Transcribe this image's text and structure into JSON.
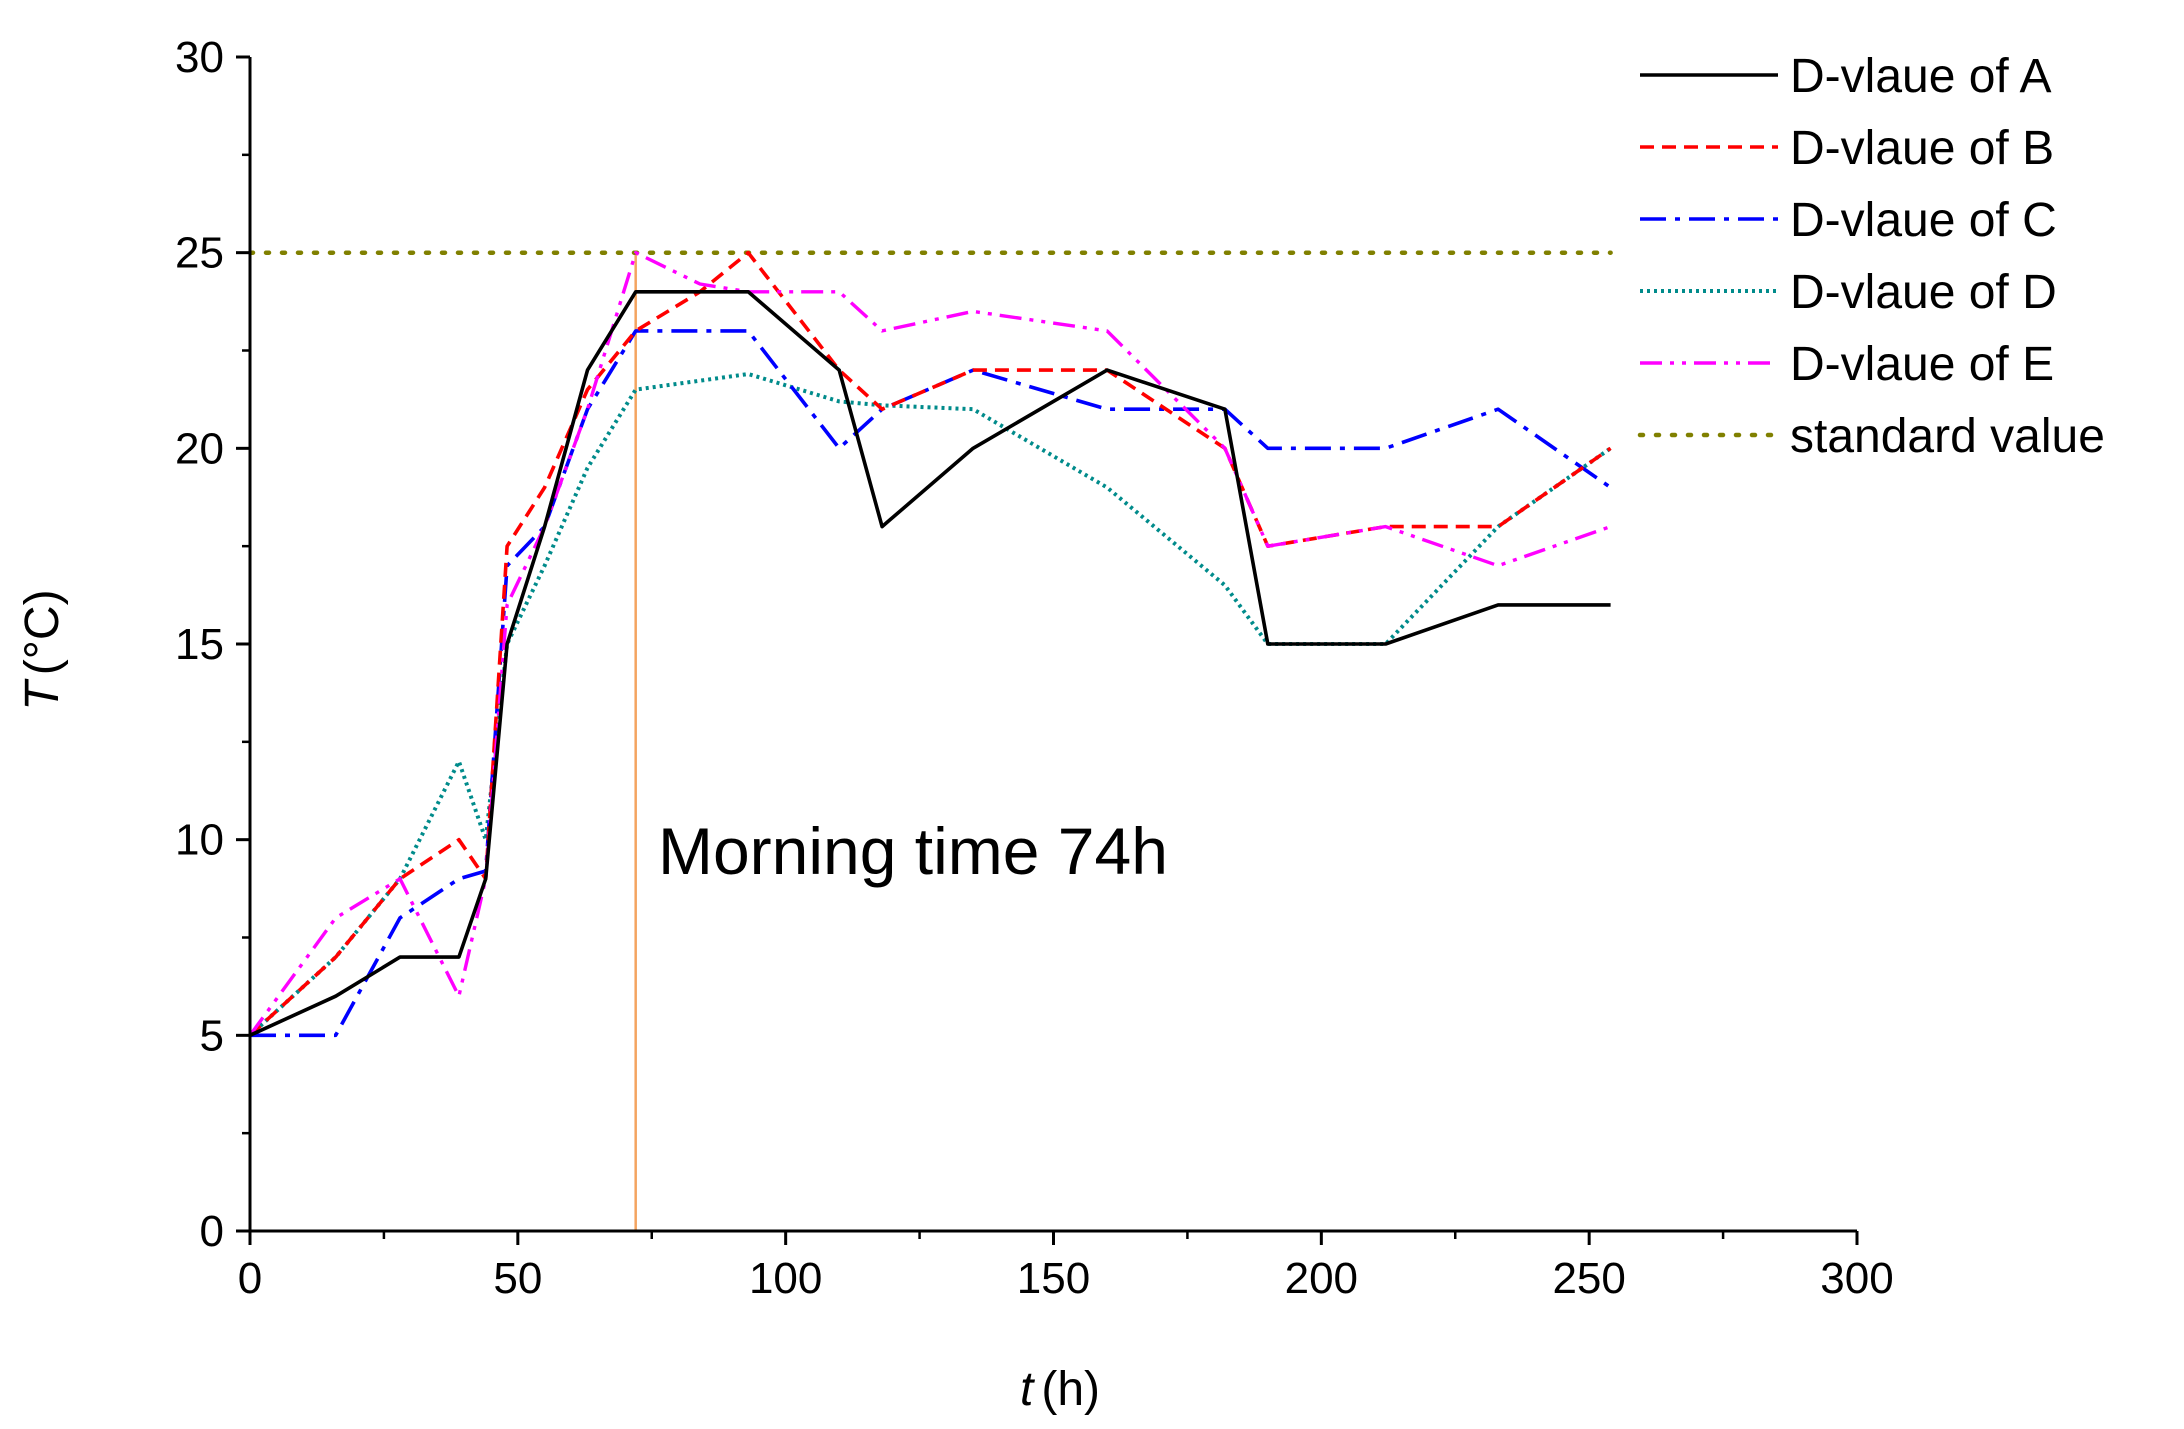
{
  "chart_data": {
    "type": "line",
    "title": "",
    "xlabel_var": "t",
    "xlabel_unit": "(h)",
    "ylabel_var": "T",
    "ylabel_unit": "(°C)",
    "xlim": [
      0,
      300
    ],
    "ylim": [
      0,
      30
    ],
    "xticks": [
      0,
      50,
      100,
      150,
      200,
      250,
      300
    ],
    "yticks": [
      0,
      5,
      10,
      15,
      20,
      25,
      30
    ],
    "xtick_labels": [
      "0",
      "50",
      "100",
      "150",
      "200",
      "250",
      "300"
    ],
    "ytick_labels": [
      "0",
      "5",
      "10",
      "15",
      "20",
      "25",
      "30"
    ],
    "grid": false,
    "legend_position": "top-right",
    "annotation": {
      "text": "Morning time 74h",
      "x": 72,
      "color": "#f4a460"
    },
    "series": [
      {
        "name": "D-vlaue of A",
        "color": "#000000",
        "dash": "solid",
        "points": [
          [
            0,
            5
          ],
          [
            16,
            6
          ],
          [
            28,
            7
          ],
          [
            39,
            7
          ],
          [
            44,
            9
          ],
          [
            48,
            15
          ],
          [
            55,
            18
          ],
          [
            63,
            22
          ],
          [
            72,
            24
          ],
          [
            93,
            24
          ],
          [
            110,
            22
          ],
          [
            118,
            18
          ],
          [
            135,
            20
          ],
          [
            160,
            22
          ],
          [
            182,
            21
          ],
          [
            190,
            15
          ],
          [
            212,
            15
          ],
          [
            233,
            16
          ],
          [
            254,
            16
          ]
        ]
      },
      {
        "name": "D-vlaue of B",
        "color": "#ff0000",
        "dash": "dash",
        "points": [
          [
            0,
            5
          ],
          [
            16,
            7
          ],
          [
            28,
            9
          ],
          [
            39,
            10
          ],
          [
            44,
            9
          ],
          [
            48,
            17.5
          ],
          [
            55,
            19
          ],
          [
            63,
            21.5
          ],
          [
            72,
            23
          ],
          [
            84,
            24
          ],
          [
            93,
            25
          ],
          [
            110,
            22
          ],
          [
            118,
            21
          ],
          [
            135,
            22
          ],
          [
            160,
            22
          ],
          [
            182,
            20
          ],
          [
            190,
            17.5
          ],
          [
            212,
            18
          ],
          [
            233,
            18
          ],
          [
            254,
            20
          ]
        ]
      },
      {
        "name": "D-vlaue of C",
        "color": "#0000ff",
        "dash": "dashdot",
        "points": [
          [
            0,
            5
          ],
          [
            16,
            5
          ],
          [
            28,
            8
          ],
          [
            39,
            9
          ],
          [
            44,
            9.2
          ],
          [
            48,
            17
          ],
          [
            55,
            18
          ],
          [
            63,
            21
          ],
          [
            72,
            23
          ],
          [
            93,
            23
          ],
          [
            110,
            20
          ],
          [
            118,
            21
          ],
          [
            135,
            22
          ],
          [
            160,
            21
          ],
          [
            182,
            21
          ],
          [
            190,
            20
          ],
          [
            212,
            20
          ],
          [
            233,
            21
          ],
          [
            254,
            19
          ]
        ]
      },
      {
        "name": "D-vlaue of D",
        "color": "#008b8b",
        "dash": "dot",
        "points": [
          [
            0,
            5
          ],
          [
            16,
            7
          ],
          [
            28,
            9
          ],
          [
            39,
            12
          ],
          [
            44,
            10
          ],
          [
            48,
            15
          ],
          [
            55,
            17
          ],
          [
            63,
            19.5
          ],
          [
            72,
            21.5
          ],
          [
            93,
            21.9
          ],
          [
            110,
            21.2
          ],
          [
            118,
            21.1
          ],
          [
            135,
            21
          ],
          [
            160,
            19
          ],
          [
            182,
            16.5
          ],
          [
            190,
            15
          ],
          [
            212,
            15
          ],
          [
            233,
            18
          ],
          [
            254,
            20
          ]
        ]
      },
      {
        "name": "D-vlaue of E",
        "color": "#ff00ff",
        "dash": "dashdotdot",
        "points": [
          [
            0,
            5
          ],
          [
            16,
            8
          ],
          [
            28,
            9
          ],
          [
            39,
            6
          ],
          [
            44,
            9
          ],
          [
            48,
            16
          ],
          [
            55,
            18
          ],
          [
            63,
            21
          ],
          [
            72,
            25
          ],
          [
            84,
            24.2
          ],
          [
            93,
            24
          ],
          [
            110,
            24
          ],
          [
            118,
            23
          ],
          [
            135,
            23.5
          ],
          [
            160,
            23
          ],
          [
            182,
            20
          ],
          [
            190,
            17.5
          ],
          [
            212,
            18
          ],
          [
            233,
            17
          ],
          [
            254,
            18
          ]
        ]
      },
      {
        "name": "standard value",
        "color": "#808000",
        "dash": "olivedot",
        "points": [
          [
            0,
            25
          ],
          [
            254,
            25
          ]
        ]
      }
    ]
  }
}
